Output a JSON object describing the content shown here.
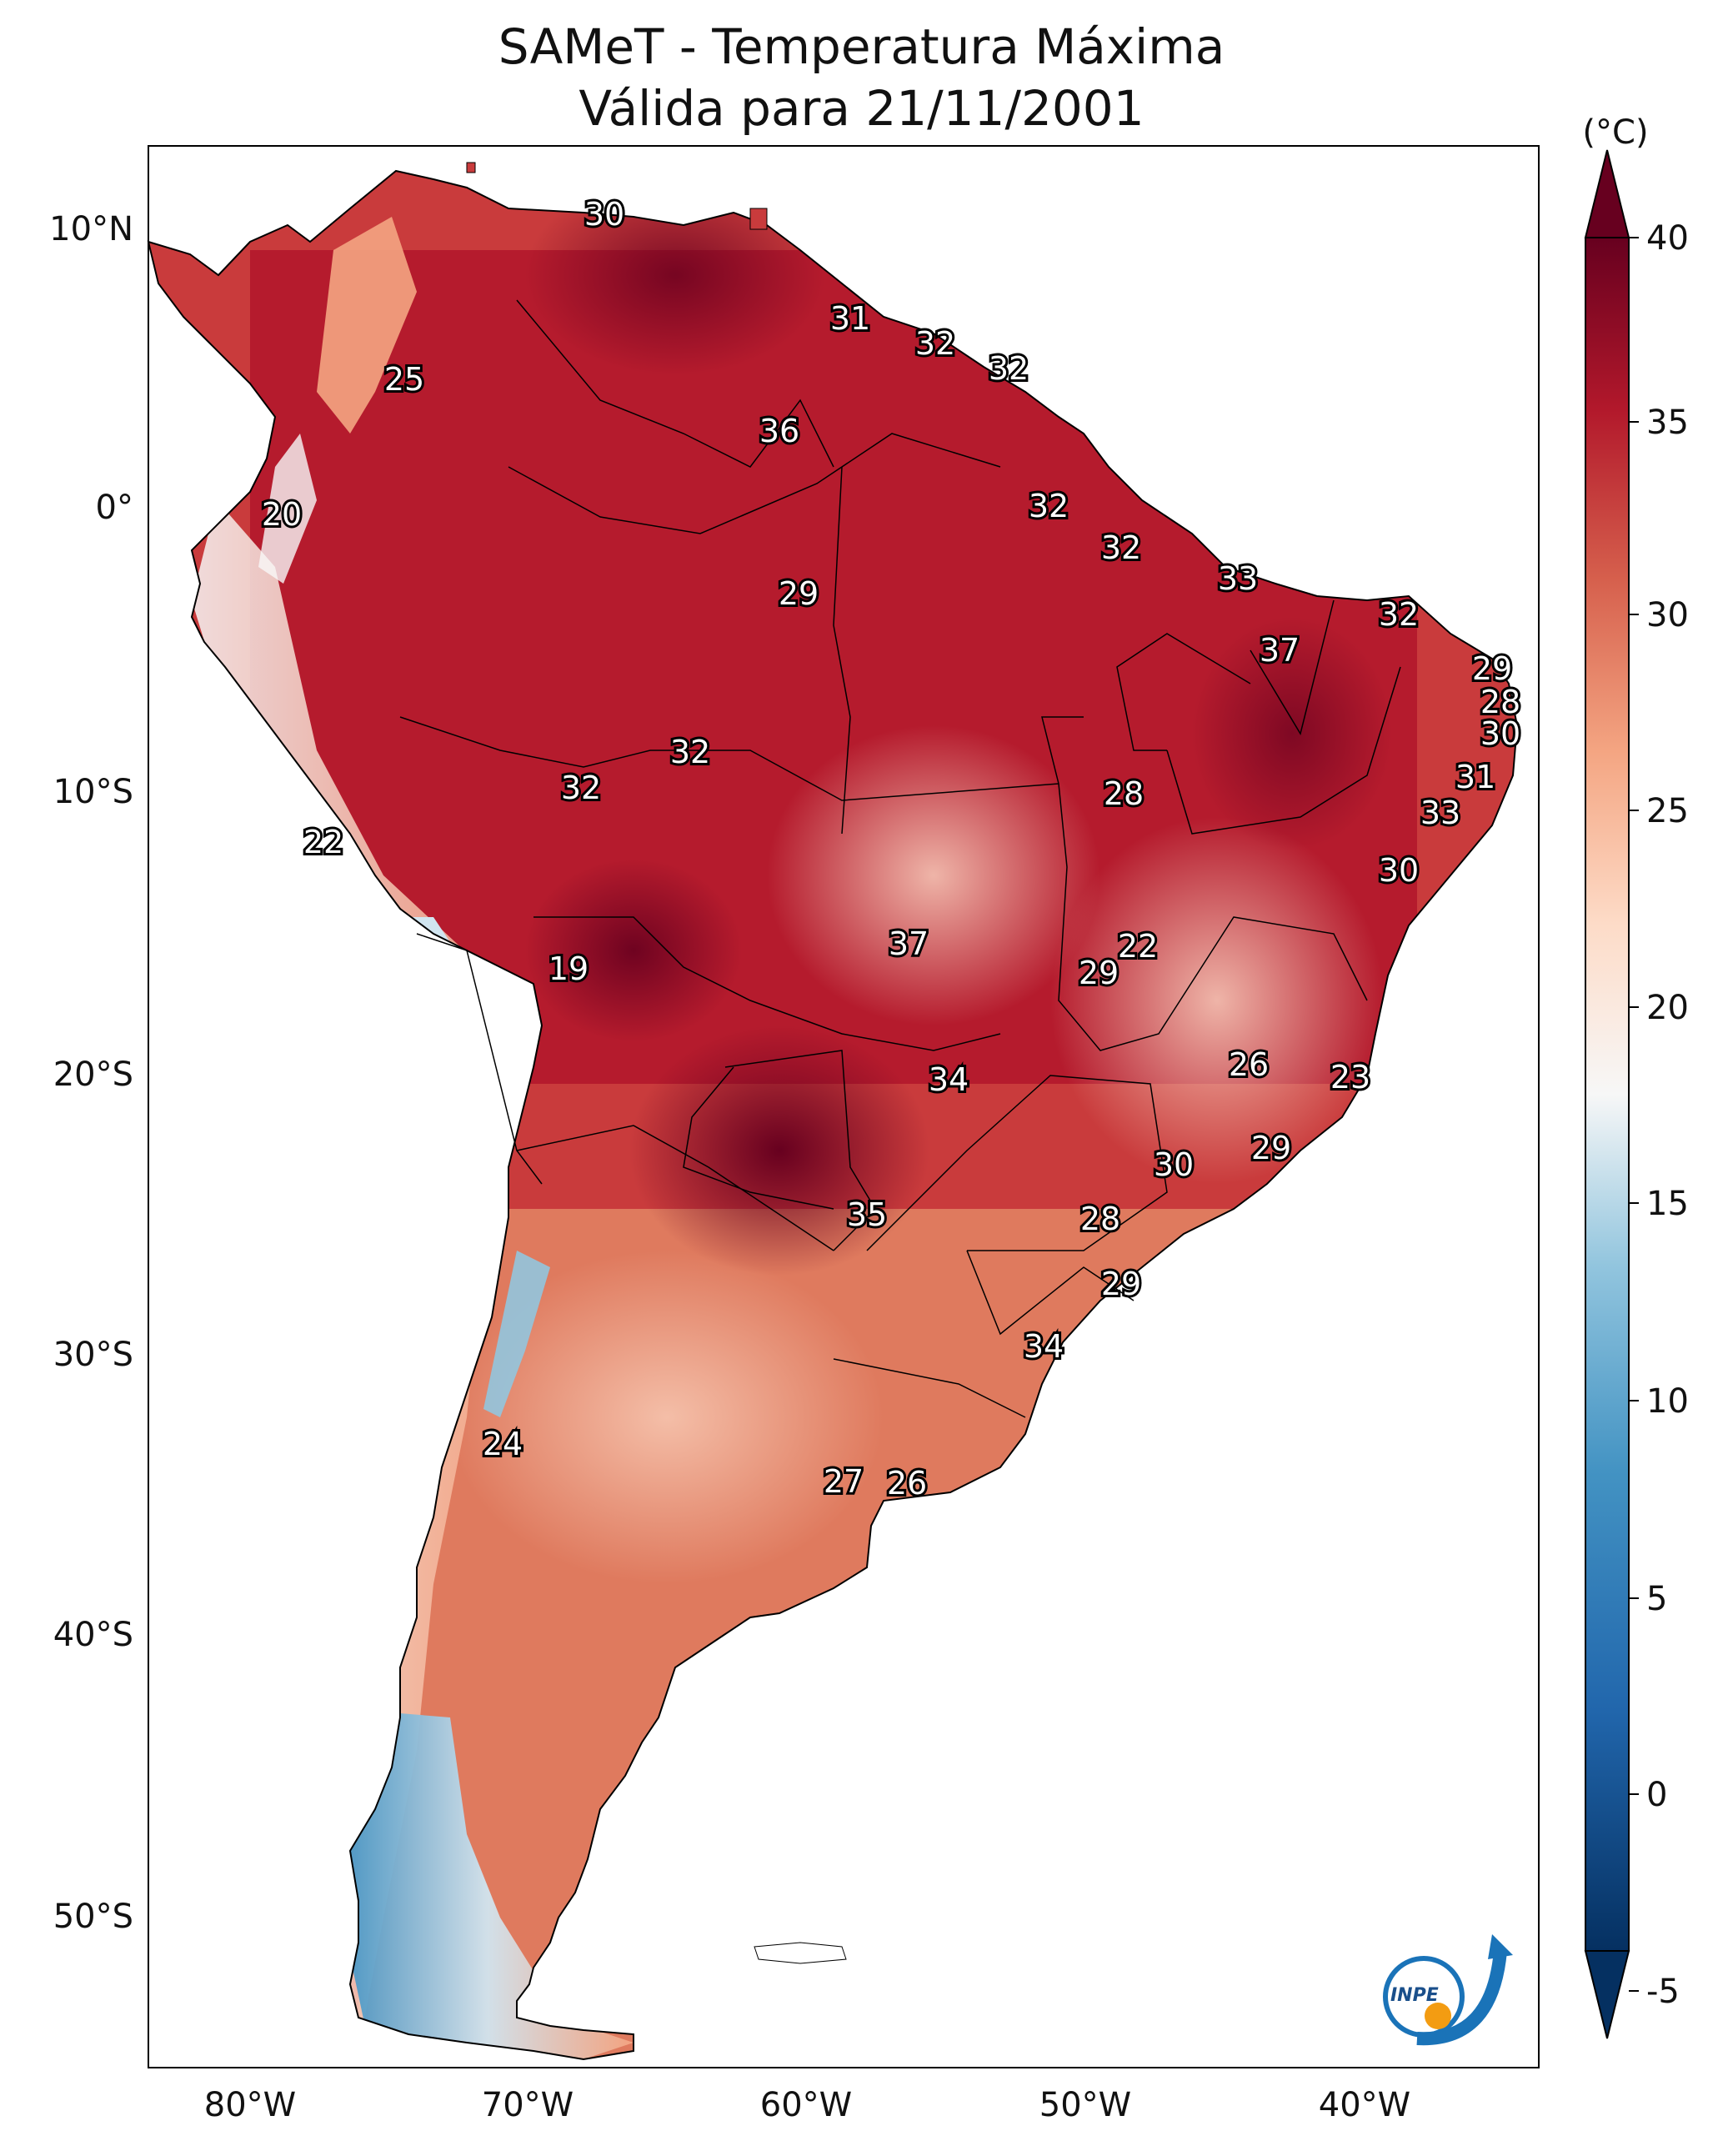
{
  "title": {
    "line1": "SAMeT - Temperatura Máxima",
    "line2": "Válida para 21/11/2001"
  },
  "axes": {
    "lat_labels": [
      "10°N",
      "0°",
      "10°S",
      "20°S",
      "30°S",
      "40°S",
      "50°S"
    ],
    "lon_labels": [
      "80°W",
      "70°W",
      "60°W",
      "50°W",
      "40°W"
    ]
  },
  "colorbar": {
    "unit": "(°C)",
    "ticks": [
      "40",
      "35",
      "30",
      "25",
      "20",
      "15",
      "10",
      "5",
      "0",
      "-5"
    ],
    "colors": {
      "hot": "#67001f",
      "warm": "#d6604d",
      "neutral": "#f7f7f7",
      "cool": "#4393c3",
      "cold": "#053061"
    }
  },
  "station_values": [
    "30",
    "31",
    "32",
    "32",
    "25",
    "36",
    "20",
    "32",
    "32",
    "29",
    "33",
    "32",
    "37",
    "29",
    "28",
    "30",
    "32",
    "32",
    "31",
    "28",
    "33",
    "22",
    "30",
    "19",
    "37",
    "22",
    "29",
    "34",
    "26",
    "23",
    "30",
    "29",
    "35",
    "28",
    "29",
    "34",
    "24",
    "27",
    "26"
  ],
  "logo": {
    "text": "INPE",
    "name": "inpe-logo"
  }
}
